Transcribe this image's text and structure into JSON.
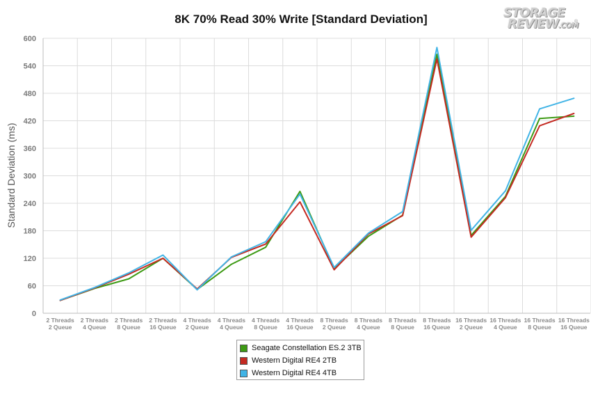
{
  "chart_data": {
    "type": "line",
    "title": "8K 70% Read 30% Write [Standard Deviation]",
    "ylabel": "Standard Deviation (ms)",
    "xlabel": "",
    "ylim": [
      0,
      600
    ],
    "yticks": [
      0,
      60,
      120,
      180,
      240,
      300,
      360,
      420,
      480,
      540,
      600
    ],
    "grid": true,
    "legend_position": "bottom-center",
    "categories": [
      [
        "2 Threads",
        "2 Queue"
      ],
      [
        "2 Threads",
        "4 Queue"
      ],
      [
        "2 Threads",
        "8 Queue"
      ],
      [
        "2 Threads",
        "16 Queue"
      ],
      [
        "4 Threads",
        "2 Queue"
      ],
      [
        "4 Threads",
        "4 Queue"
      ],
      [
        "4 Threads",
        "8 Queue"
      ],
      [
        "4 Threads",
        "16 Queue"
      ],
      [
        "8 Threads",
        "2 Queue"
      ],
      [
        "8 Threads",
        "4 Queue"
      ],
      [
        "8 Threads",
        "8 Queue"
      ],
      [
        "8 Threads",
        "16 Queue"
      ],
      [
        "16 Threads",
        "2 Queue"
      ],
      [
        "16 Threads",
        "4 Queue"
      ],
      [
        "16 Threads",
        "8 Queue"
      ],
      [
        "16 Threads",
        "16 Queue"
      ]
    ],
    "series": [
      {
        "name": "Seagate Constellation ES.2 3TB",
        "color": "#3d9a14",
        "values": [
          28,
          54,
          75,
          120,
          52,
          107,
          144,
          266,
          97,
          168,
          214,
          565,
          170,
          255,
          425,
          430
        ]
      },
      {
        "name": "Western Digital RE4 2TB",
        "color": "#c42a22",
        "values": [
          28,
          55,
          85,
          120,
          53,
          122,
          151,
          243,
          95,
          173,
          213,
          555,
          166,
          252,
          409,
          436
        ]
      },
      {
        "name": "Western Digital RE4 4TB",
        "color": "#41b4e6",
        "values": [
          29,
          56,
          88,
          127,
          51,
          123,
          156,
          260,
          100,
          175,
          222,
          580,
          181,
          267,
          446,
          469
        ]
      }
    ]
  },
  "logo": {
    "line1": "STORAGE",
    "line2": "REVIEW",
    "line2_suffix": ".COM",
    "mark": "®"
  }
}
